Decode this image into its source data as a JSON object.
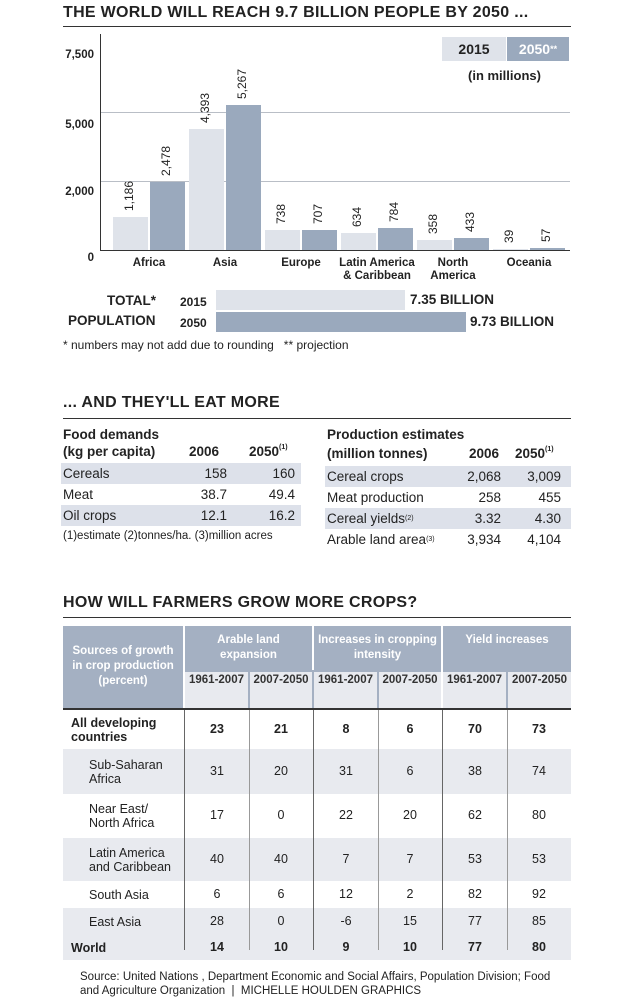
{
  "section1": {
    "title": "THE WORLD WILL REACH 9.7 BILLION PEOPLE BY 2050 ...",
    "legend": {
      "a": "2015",
      "b": "2050",
      "b_suffix": "**",
      "unit": "(in millions)"
    },
    "ytick_labels": [
      "7,500",
      "5,000",
      "2,000",
      "0"
    ],
    "totals": {
      "label1": "TOTAL*",
      "label2": "POPULATION",
      "y1": "2015",
      "y2": "2050",
      "v1": "7.35 BILLION",
      "v2": "9.73 BILLION"
    },
    "footnote": "* numbers may not add due to rounding   ** projection"
  },
  "chart_data": {
    "type": "bar",
    "categories": [
      "Africa",
      "Asia",
      "Europe",
      "Latin America & Caribbean",
      "North America",
      "Oceania"
    ],
    "category_lines": [
      [
        "Africa"
      ],
      [
        "Asia"
      ],
      [
        "Europe"
      ],
      [
        "Latin America",
        "& Caribbean"
      ],
      [
        "North",
        "America"
      ],
      [
        "Oceania"
      ]
    ],
    "series": [
      {
        "name": "2015",
        "values": [
          1186,
          4393,
          738,
          634,
          358,
          39
        ],
        "labels": [
          "1,186",
          "4,393",
          "738",
          "634",
          "358",
          "39"
        ],
        "color": "#dfe3ea"
      },
      {
        "name": "2050**",
        "values": [
          2478,
          5267,
          707,
          784,
          433,
          57
        ],
        "labels": [
          "2,478",
          "5,267",
          "707",
          "784",
          "433",
          "57"
        ],
        "color": "#9aa9bd"
      }
    ],
    "yticks": [
      0,
      2000,
      5000,
      7500
    ],
    "ylim": [
      0,
      7500
    ],
    "title": "THE WORLD WILL REACH 9.7 BILLION PEOPLE BY 2050 ...",
    "ylabel": "(in millions)",
    "totals": [
      {
        "year": "2015",
        "value": 7.35
      },
      {
        "year": "2050",
        "value": 9.73
      }
    ],
    "grid": true,
    "legend": "top-right"
  },
  "section2": {
    "title": "... AND THEY'LL EAT MORE",
    "food": {
      "head1": "Food demands",
      "head2": "(kg per capita)",
      "y1": "2006",
      "y2": "2050",
      "y2sup": "(1)",
      "rows": [
        {
          "label": "Cereals",
          "a": "158",
          "b": "160"
        },
        {
          "label": "Meat",
          "a": "38.7",
          "b": "49.4"
        },
        {
          "label": "Oil crops",
          "a": "12.1",
          "b": "16.2"
        }
      ],
      "note": "(1)estimate (2)tonnes/ha. (3)million acres"
    },
    "production": {
      "head1": "Production estimates",
      "head2": "(million tonnes)",
      "y1": "2006",
      "y2": "2050",
      "y2sup": "(1)",
      "rows": [
        {
          "label": "Cereal crops",
          "sup": "",
          "a": "2,068",
          "b": "3,009"
        },
        {
          "label": "Meat production",
          "sup": "",
          "a": "258",
          "b": "455"
        },
        {
          "label": "Cereal yields",
          "sup": "(2)",
          "a": "3.32",
          "b": "4.30"
        },
        {
          "label": "Arable land area",
          "sup": "(3)",
          "a": "3,934",
          "b": "4,104"
        }
      ]
    }
  },
  "section3": {
    "title": "HOW WILL FARMERS GROW MORE CROPS?",
    "corner": "Sources of growth in crop production (percent)",
    "groups": [
      "Arable land expansion",
      "Increases in cropping intensity",
      "Yield increases"
    ],
    "periods": [
      "1961-2007",
      "2007-2050",
      "1961-2007",
      "2007-2050",
      "1961-2007",
      "2007-2050"
    ],
    "rows": [
      {
        "label": "All developing countries",
        "bold": true,
        "values": [
          "23",
          "21",
          "8",
          "6",
          "70",
          "73"
        ]
      },
      {
        "label": "Sub-Saharan Africa",
        "bold": false,
        "values": [
          "31",
          "20",
          "31",
          "6",
          "38",
          "74"
        ]
      },
      {
        "label": "Near East/ North Africa",
        "bold": false,
        "values": [
          "17",
          "0",
          "22",
          "20",
          "62",
          "80"
        ]
      },
      {
        "label": "Latin America and Caribbean",
        "bold": false,
        "values": [
          "40",
          "40",
          "7",
          "7",
          "53",
          "53"
        ]
      },
      {
        "label": "South Asia",
        "bold": false,
        "values": [
          "6",
          "6",
          "12",
          "2",
          "82",
          "92"
        ]
      },
      {
        "label": "East Asia",
        "bold": false,
        "values": [
          "28",
          "0",
          "-6",
          "15",
          "77",
          "85"
        ]
      },
      {
        "label": "World",
        "bold": true,
        "values": [
          "14",
          "10",
          "9",
          "10",
          "77",
          "80"
        ]
      }
    ]
  },
  "source": {
    "line1": "Source: United Nations , Department Economic and Social Affairs, Population Division; Food",
    "line2": "and Agriculture Organization  |  MICHELLE HOULDEN GRAPHICS"
  }
}
